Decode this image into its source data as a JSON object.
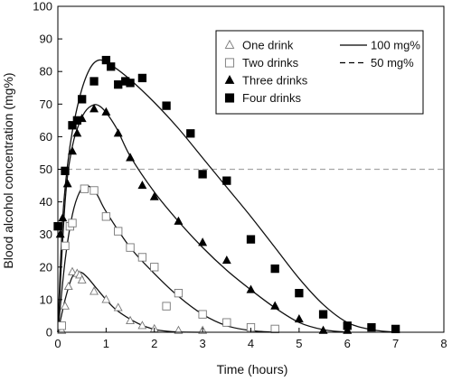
{
  "chart_data": {
    "type": "scatter",
    "title": "",
    "xlabel": "Time (hours)",
    "ylabel": "Blood alcohol concentration (mg%)",
    "xlim": [
      0,
      8
    ],
    "ylim": [
      0,
      100
    ],
    "x_ticks": [
      0,
      1,
      2,
      3,
      4,
      5,
      6,
      7,
      8
    ],
    "y_ticks": [
      0,
      10,
      20,
      30,
      40,
      50,
      60,
      70,
      80,
      90,
      100
    ],
    "grid": false,
    "legend_position": "top-right",
    "reference_line": {
      "y": 50,
      "label": "50 mg%",
      "style": "dashed",
      "color": "#a6a6a6"
    },
    "fit_legend_label": "100 mg%",
    "series": [
      {
        "name": "One drink",
        "marker": "open-triangle",
        "points": [
          [
            0.08,
            0.5
          ],
          [
            0.15,
            8
          ],
          [
            0.22,
            14
          ],
          [
            0.3,
            18.5
          ],
          [
            0.4,
            18
          ],
          [
            0.45,
            17.5
          ],
          [
            0.5,
            16
          ],
          [
            0.75,
            12.5
          ],
          [
            1.0,
            10
          ],
          [
            1.25,
            7.5
          ],
          [
            1.5,
            3.5
          ],
          [
            1.75,
            2
          ],
          [
            2.0,
            1
          ],
          [
            2.5,
            0.5
          ],
          [
            3.0,
            0.5
          ]
        ],
        "curve": [
          [
            0,
            0
          ],
          [
            0.15,
            10
          ],
          [
            0.3,
            17
          ],
          [
            0.45,
            18.5
          ],
          [
            0.6,
            17
          ],
          [
            0.8,
            13.5
          ],
          [
            1.0,
            10
          ],
          [
            1.2,
            7
          ],
          [
            1.5,
            4
          ],
          [
            1.8,
            1.8
          ],
          [
            2.1,
            0.6
          ],
          [
            2.5,
            0.1
          ],
          [
            3.0,
            0
          ]
        ]
      },
      {
        "name": "Two drinks",
        "marker": "open-square",
        "points": [
          [
            0.08,
            2
          ],
          [
            0.15,
            26.5
          ],
          [
            0.25,
            32.5
          ],
          [
            0.3,
            33.5
          ],
          [
            0.55,
            44
          ],
          [
            0.75,
            43.5
          ],
          [
            1.0,
            35.5
          ],
          [
            1.25,
            31
          ],
          [
            1.5,
            26
          ],
          [
            1.75,
            23
          ],
          [
            2.0,
            20
          ],
          [
            2.25,
            8
          ],
          [
            2.5,
            12
          ],
          [
            3.0,
            5.5
          ],
          [
            3.5,
            3
          ],
          [
            4.0,
            1.5
          ],
          [
            4.5,
            1
          ]
        ],
        "curve": [
          [
            0,
            0
          ],
          [
            0.15,
            22
          ],
          [
            0.3,
            36
          ],
          [
            0.45,
            43
          ],
          [
            0.6,
            45
          ],
          [
            0.8,
            42.5
          ],
          [
            1.0,
            37
          ],
          [
            1.5,
            26
          ],
          [
            2.0,
            18
          ],
          [
            2.5,
            11
          ],
          [
            3.0,
            5.5
          ],
          [
            3.5,
            2
          ],
          [
            4.0,
            0.5
          ],
          [
            4.5,
            0
          ]
        ]
      },
      {
        "name": "Three drinks",
        "marker": "filled-triangle",
        "points": [
          [
            0.05,
            30
          ],
          [
            0.1,
            35
          ],
          [
            0.2,
            45.5
          ],
          [
            0.3,
            55.5
          ],
          [
            0.4,
            61
          ],
          [
            0.5,
            65.5
          ],
          [
            0.75,
            68.5
          ],
          [
            1.0,
            67.5
          ],
          [
            1.25,
            61
          ],
          [
            1.5,
            53.5
          ],
          [
            1.75,
            45
          ],
          [
            2.0,
            41.5
          ],
          [
            2.5,
            34
          ],
          [
            3.0,
            27.5
          ],
          [
            3.5,
            22
          ],
          [
            4.0,
            13
          ],
          [
            4.5,
            8
          ],
          [
            5.0,
            4
          ],
          [
            5.5,
            0.5
          ],
          [
            6.0,
            0.5
          ]
        ],
        "curve": [
          [
            0,
            0
          ],
          [
            0.15,
            40
          ],
          [
            0.3,
            57
          ],
          [
            0.5,
            66
          ],
          [
            0.7,
            69.5
          ],
          [
            0.9,
            69
          ],
          [
            1.2,
            63
          ],
          [
            1.5,
            54
          ],
          [
            2.0,
            43
          ],
          [
            2.5,
            34
          ],
          [
            3.0,
            26
          ],
          [
            3.5,
            19
          ],
          [
            4.0,
            13
          ],
          [
            4.5,
            7.5
          ],
          [
            5.0,
            3
          ],
          [
            5.5,
            0.8
          ],
          [
            6.0,
            0
          ]
        ]
      },
      {
        "name": "Four drinks",
        "marker": "filled-square",
        "points": [
          [
            0.0,
            32.5
          ],
          [
            0.15,
            49.5
          ],
          [
            0.3,
            63.5
          ],
          [
            0.4,
            65
          ],
          [
            0.5,
            71.5
          ],
          [
            0.75,
            77
          ],
          [
            1.0,
            83.5
          ],
          [
            1.1,
            81.5
          ],
          [
            1.25,
            76
          ],
          [
            1.4,
            77
          ],
          [
            1.5,
            76.5
          ],
          [
            1.75,
            78
          ],
          [
            2.25,
            69.5
          ],
          [
            2.75,
            61
          ],
          [
            3.0,
            48.5
          ],
          [
            3.5,
            46.5
          ],
          [
            4.0,
            28.5
          ],
          [
            4.5,
            19.5
          ],
          [
            5.0,
            12
          ],
          [
            5.5,
            5.5
          ],
          [
            6.0,
            2
          ],
          [
            6.5,
            1.5
          ],
          [
            7.0,
            1
          ]
        ],
        "curve": [
          [
            0,
            0
          ],
          [
            0.1,
            35
          ],
          [
            0.25,
            57
          ],
          [
            0.45,
            72
          ],
          [
            0.65,
            80.5
          ],
          [
            0.85,
            83.5
          ],
          [
            1.1,
            82
          ],
          [
            1.5,
            77.5
          ],
          [
            2.0,
            70.5
          ],
          [
            2.5,
            62.5
          ],
          [
            3.0,
            53.5
          ],
          [
            3.5,
            44.5
          ],
          [
            4.0,
            35.5
          ],
          [
            4.5,
            26
          ],
          [
            5.0,
            16.5
          ],
          [
            5.5,
            8.5
          ],
          [
            6.0,
            3
          ],
          [
            6.5,
            0.8
          ],
          [
            7.0,
            0
          ]
        ]
      }
    ]
  }
}
